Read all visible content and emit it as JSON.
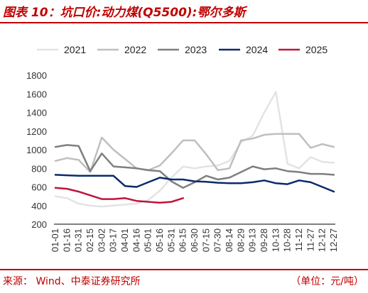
{
  "header": {
    "title": "图表 10：坑口价:动力煤(Q5500):鄂尔多斯"
  },
  "footer": {
    "source": "来源：  Wind、中泰证券研究所",
    "unit": "（单位：元/吨）"
  },
  "chart_data": {
    "type": "line",
    "x": [
      "01-01",
      "01-16",
      "01-31",
      "02-15",
      "03-02",
      "03-17",
      "04-01",
      "04-16",
      "05-01",
      "05-16",
      "05-31",
      "06-15",
      "06-30",
      "07-15",
      "07-30",
      "08-14",
      "08-29",
      "09-13",
      "09-28",
      "10-13",
      "10-28",
      "11-12",
      "11-27",
      "12-12",
      "12-27"
    ],
    "ylim": [
      200,
      1800
    ],
    "yticks": [
      200,
      400,
      600,
      800,
      1000,
      1200,
      1400,
      1600,
      1800
    ],
    "legend_position": "top",
    "series": [
      {
        "name": "2021",
        "color": "#e3e3e3",
        "values": [
          500,
          480,
          420,
          400,
          390,
          400,
          410,
          420,
          460,
          560,
          700,
          820,
          800,
          820,
          830,
          880,
          1080,
          1150,
          1400,
          1620,
          850,
          800,
          920,
          870,
          860
        ]
      },
      {
        "name": "2022",
        "color": "#bfbfbf",
        "values": [
          880,
          910,
          890,
          760,
          1130,
          1000,
          900,
          800,
          780,
          830,
          960,
          1100,
          1100,
          950,
          780,
          800,
          1100,
          1120,
          1160,
          1170,
          1170,
          1170,
          1020,
          1060,
          1030
        ]
      },
      {
        "name": "2023",
        "color": "#7f7f7f",
        "values": [
          1030,
          1050,
          1040,
          770,
          960,
          820,
          810,
          800,
          780,
          770,
          660,
          590,
          650,
          720,
          680,
          700,
          760,
          820,
          790,
          800,
          770,
          760,
          740,
          740,
          730
        ]
      },
      {
        "name": "2024",
        "color": "#0b2a6b",
        "values": [
          730,
          725,
          720,
          720,
          720,
          720,
          610,
          600,
          650,
          700,
          680,
          680,
          660,
          655,
          645,
          640,
          640,
          650,
          670,
          640,
          630,
          670,
          650,
          600,
          550
        ]
      },
      {
        "name": "2025",
        "color": "#c0143c",
        "values": [
          590,
          580,
          550,
          510,
          470,
          470,
          480,
          450,
          440,
          430,
          440,
          480,
          null,
          null,
          null,
          null,
          null,
          null,
          null,
          null,
          null,
          null,
          null,
          null,
          null
        ]
      }
    ]
  }
}
